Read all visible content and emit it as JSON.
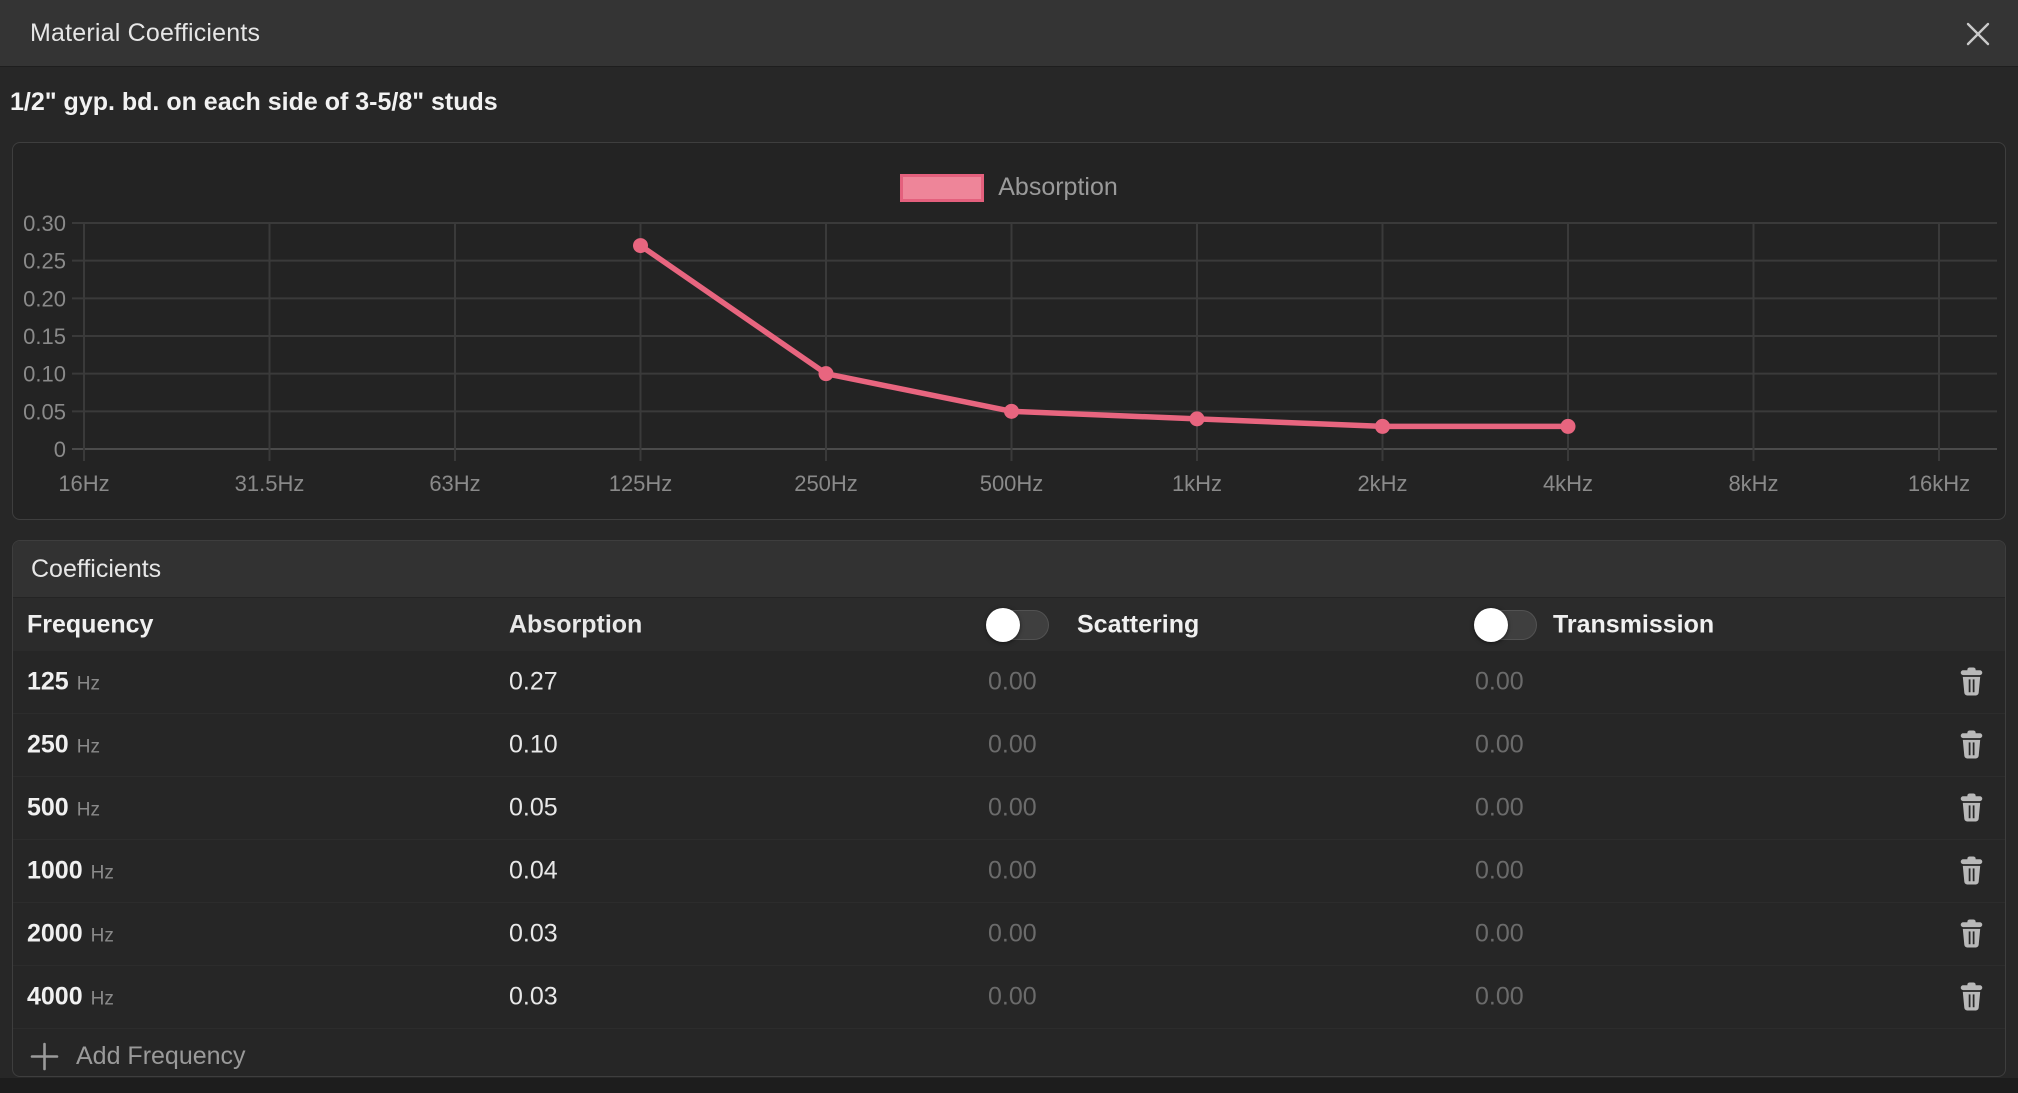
{
  "header": {
    "title": "Material Coefficients"
  },
  "material_name": "1/2\" gyp. bd. on each side of 3-5/8\" studs",
  "colors": {
    "accent_line": "#e8657f",
    "legend_fill": "#ee8599",
    "legend_border": "#e4607d",
    "grid": "#3a3a3a",
    "zero_line": "#4b4b4b",
    "axis_text": "#8a8a8a"
  },
  "chart_data": {
    "type": "line",
    "legend": [
      {
        "label": "Absorption",
        "color": "#e8657f"
      }
    ],
    "legend_position": "top",
    "grid": true,
    "x_labels": [
      "16Hz",
      "31.5Hz",
      "63Hz",
      "125Hz",
      "250Hz",
      "500Hz",
      "1kHz",
      "2kHz",
      "4kHz",
      "8kHz",
      "16kHz"
    ],
    "y_ticks": [
      "0.30",
      "0.25",
      "0.20",
      "0.15",
      "0.10",
      "0.05",
      "0"
    ],
    "ylim": [
      0,
      0.3
    ],
    "series": [
      {
        "name": "Absorption",
        "x": [
          "125Hz",
          "250Hz",
          "500Hz",
          "1kHz",
          "2kHz",
          "4kHz"
        ],
        "values": [
          0.27,
          0.1,
          0.05,
          0.04,
          0.03,
          0.03
        ]
      }
    ]
  },
  "table": {
    "section_title": "Coefficients",
    "columns": {
      "frequency": "Frequency",
      "absorption": "Absorption",
      "scattering": "Scattering",
      "transmission": "Transmission"
    },
    "toggles": {
      "scattering_enabled": false,
      "transmission_enabled": false
    },
    "rows": [
      {
        "frequency": "125",
        "unit": "Hz",
        "absorption": "0.27",
        "scattering": "0.00",
        "transmission": "0.00"
      },
      {
        "frequency": "250",
        "unit": "Hz",
        "absorption": "0.10",
        "scattering": "0.00",
        "transmission": "0.00"
      },
      {
        "frequency": "500",
        "unit": "Hz",
        "absorption": "0.05",
        "scattering": "0.00",
        "transmission": "0.00"
      },
      {
        "frequency": "1000",
        "unit": "Hz",
        "absorption": "0.04",
        "scattering": "0.00",
        "transmission": "0.00"
      },
      {
        "frequency": "2000",
        "unit": "Hz",
        "absorption": "0.03",
        "scattering": "0.00",
        "transmission": "0.00"
      },
      {
        "frequency": "4000",
        "unit": "Hz",
        "absorption": "0.03",
        "scattering": "0.00",
        "transmission": "0.00"
      }
    ],
    "add_button_label": "Add Frequency"
  }
}
